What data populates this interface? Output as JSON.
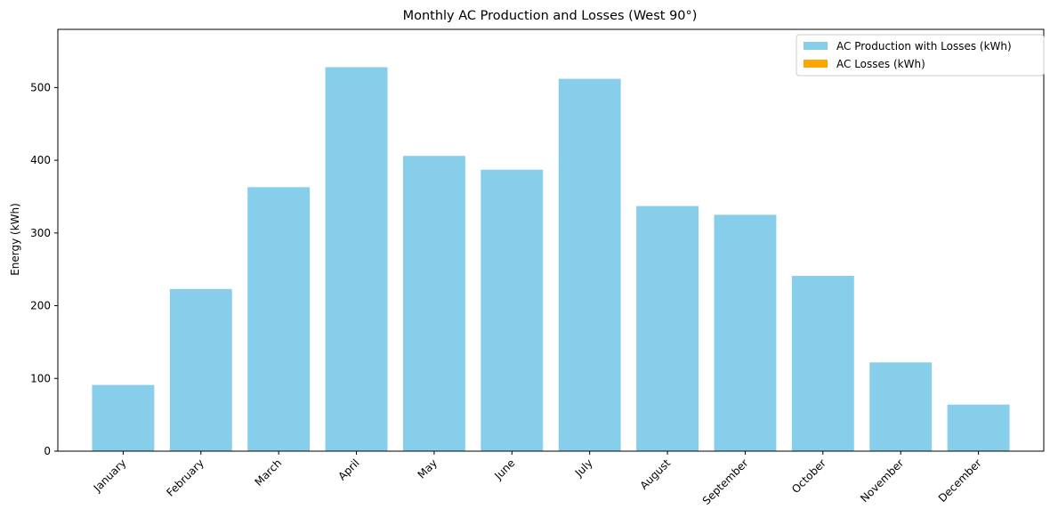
{
  "chart_data": {
    "type": "bar",
    "title": "Monthly AC Production and Losses (West 90°)",
    "xlabel": "",
    "ylabel": "Energy (kWh)",
    "categories": [
      "January",
      "February",
      "March",
      "April",
      "May",
      "June",
      "July",
      "August",
      "September",
      "October",
      "November",
      "December"
    ],
    "series": [
      {
        "name": "AC Production with Losses (kWh)",
        "color": "#87ceeb",
        "values": [
          91,
          223,
          363,
          528,
          406,
          387,
          512,
          337,
          325,
          241,
          122,
          64
        ]
      },
      {
        "name": "AC Losses (kWh)",
        "color": "#ffa500",
        "values": [
          0,
          0,
          0,
          0,
          0,
          0,
          0,
          0,
          0,
          0,
          0,
          0
        ]
      }
    ],
    "ylim": [
      0,
      580
    ],
    "yticks": [
      0,
      100,
      200,
      300,
      400,
      500
    ],
    "grid": false,
    "legend_position": "top-right",
    "x_tick_rotation_deg": 45
  }
}
